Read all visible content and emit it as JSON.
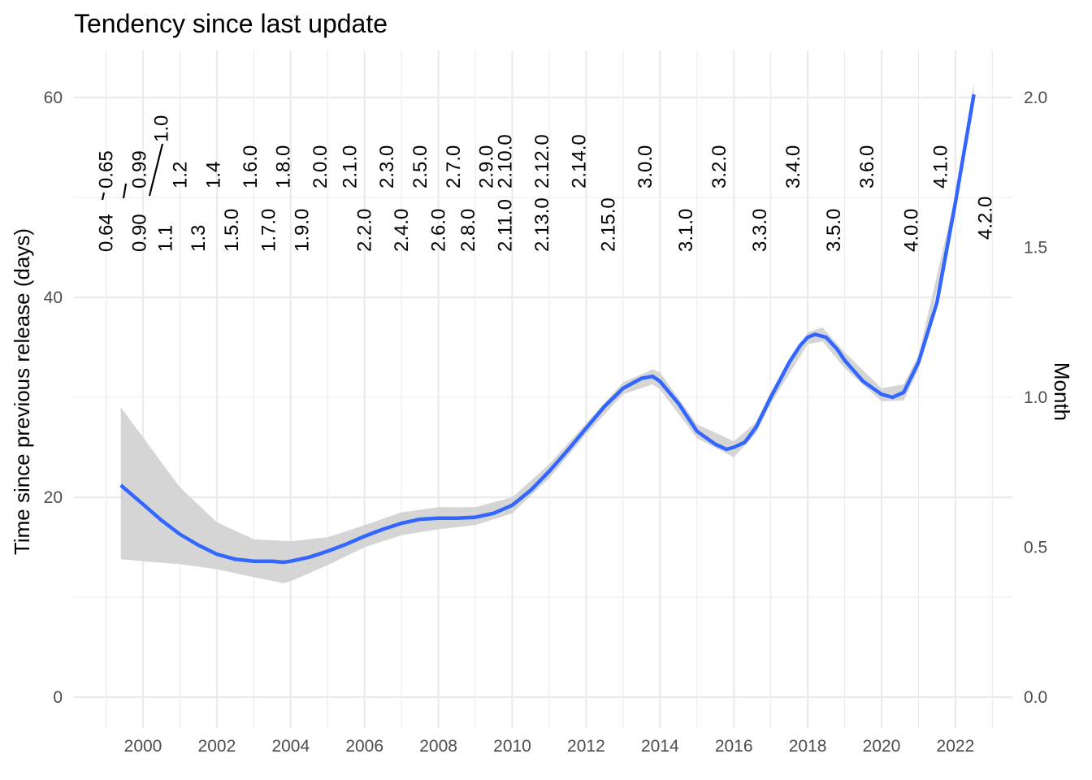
{
  "chart_data": {
    "type": "line",
    "title": "Tendency since last update",
    "xlabel": "",
    "ylabel": "Time since previous release (days)",
    "y2label": "Month",
    "xlim": [
      1998.9,
      2023.6
    ],
    "ylim": [
      -1.5,
      65
    ],
    "x_ticks": [
      2000,
      2002,
      2004,
      2006,
      2008,
      2010,
      2012,
      2014,
      2016,
      2018,
      2020,
      2022
    ],
    "y_ticks": [
      0,
      20,
      40,
      60
    ],
    "y2_ticks": [
      "0.0",
      "0.5",
      "1.0",
      "1.5",
      "2.0"
    ],
    "y2_tick_values_days": [
      0,
      15,
      30,
      45,
      60
    ],
    "grid": true,
    "colors": {
      "line": "#3366ff",
      "ribbon": "#d3d3d3",
      "grid": "#ebebeb",
      "segment": "#000000"
    },
    "series": [
      {
        "x": [
          1999.4,
          2000.0,
          2000.5,
          2001.0,
          2001.5,
          2002.0,
          2002.5,
          2003.0,
          2003.5,
          2003.8,
          2004.0,
          2004.5,
          2005.0,
          2005.5,
          2006.0,
          2006.5,
          2007.0,
          2007.5,
          2008.0,
          2008.5,
          2009.0,
          2009.5,
          2010.0,
          2010.5,
          2011.0,
          2011.5,
          2012.0,
          2012.5,
          2013.0,
          2013.5,
          2013.8,
          2014.0,
          2014.5,
          2015.0,
          2015.5,
          2015.8,
          2016.0,
          2016.3,
          2016.6,
          2017.0,
          2017.5,
          2017.8,
          2018.0,
          2018.2,
          2018.5,
          2018.8,
          2019.0,
          2019.5,
          2020.0,
          2020.3,
          2020.6,
          2021.0,
          2021.5,
          2022.0,
          2022.5
        ],
        "y": [
          21.2,
          19.3,
          17.7,
          16.3,
          15.2,
          14.3,
          13.8,
          13.6,
          13.6,
          13.5,
          13.6,
          14.0,
          14.6,
          15.3,
          16.1,
          16.8,
          17.4,
          17.8,
          17.9,
          17.9,
          18.0,
          18.4,
          19.2,
          20.7,
          22.6,
          24.7,
          26.9,
          29.1,
          30.9,
          31.9,
          32.1,
          31.6,
          29.4,
          26.6,
          25.3,
          24.8,
          25.0,
          25.5,
          27.0,
          30.0,
          33.5,
          35.2,
          36.0,
          36.3,
          36.0,
          34.8,
          33.7,
          31.6,
          30.3,
          30.0,
          30.5,
          33.5,
          39.5,
          49.5,
          60.3
        ]
      },
      {
        "name": "confidence band upper",
        "x": [
          1999.4,
          2000.0,
          2001.0,
          2002.0,
          2003.0,
          2004.0,
          2005.0,
          2006.0,
          2007.0,
          2008.0,
          2009.0,
          2010.0,
          2011.0,
          2012.0,
          2013.0,
          2013.8,
          2014.0,
          2015.0,
          2016.0,
          2016.6,
          2017.0,
          2018.0,
          2018.4,
          2019.0,
          2020.0,
          2020.6,
          2021.0,
          2022.0,
          2022.5
        ],
        "y": [
          29.0,
          26.0,
          21.0,
          17.5,
          15.8,
          15.6,
          16.0,
          17.2,
          18.5,
          19.0,
          19.0,
          20.0,
          23.3,
          27.4,
          31.5,
          32.8,
          32.5,
          27.3,
          25.6,
          27.5,
          30.6,
          36.5,
          37.0,
          34.5,
          30.9,
          31.3,
          34.2,
          50.2,
          61.4
        ]
      },
      {
        "name": "confidence band lower",
        "x": [
          1999.4,
          2000.0,
          2001.0,
          2002.0,
          2003.0,
          2003.8,
          2004.0,
          2005.0,
          2006.0,
          2007.0,
          2008.0,
          2009.0,
          2010.0,
          2011.0,
          2012.0,
          2013.0,
          2013.8,
          2014.0,
          2015.0,
          2016.0,
          2016.6,
          2017.0,
          2018.0,
          2018.4,
          2019.0,
          2020.0,
          2020.6,
          2021.0,
          2022.0,
          2022.5
        ],
        "y": [
          13.8,
          13.6,
          13.3,
          12.8,
          12.0,
          11.4,
          11.6,
          13.2,
          15.0,
          16.2,
          16.8,
          17.2,
          18.4,
          21.9,
          26.3,
          30.3,
          31.3,
          30.8,
          25.9,
          24.0,
          26.4,
          29.4,
          35.3,
          35.6,
          32.9,
          29.6,
          29.7,
          32.8,
          48.7,
          59.2
        ]
      }
    ],
    "version_labels": [
      {
        "label": "0.64",
        "x": 1999.0,
        "row": "low"
      },
      {
        "label": "0.65",
        "x": 1999.0,
        "row": "high"
      },
      {
        "label": "0.90",
        "x": 1999.9,
        "row": "low"
      },
      {
        "label": "0.99",
        "x": 1999.9,
        "row": "high"
      },
      {
        "label": "1.0",
        "x": 2000.5,
        "row": "top"
      },
      {
        "label": "1.1",
        "x": 2000.6,
        "row": "low"
      },
      {
        "label": "1.2",
        "x": 2001.0,
        "row": "high"
      },
      {
        "label": "1.3",
        "x": 2001.5,
        "row": "low"
      },
      {
        "label": "1.4",
        "x": 2001.9,
        "row": "high"
      },
      {
        "label": "1.5.0",
        "x": 2002.4,
        "row": "low"
      },
      {
        "label": "1.6.0",
        "x": 2002.9,
        "row": "high"
      },
      {
        "label": "1.7.0",
        "x": 2003.4,
        "row": "low"
      },
      {
        "label": "1.8.0",
        "x": 2003.8,
        "row": "high"
      },
      {
        "label": "1.9.0",
        "x": 2004.3,
        "row": "low"
      },
      {
        "label": "2.0.0",
        "x": 2004.8,
        "row": "high"
      },
      {
        "label": "2.1.0",
        "x": 2005.6,
        "row": "high"
      },
      {
        "label": "2.2.0",
        "x": 2006.0,
        "row": "low"
      },
      {
        "label": "2.3.0",
        "x": 2006.6,
        "row": "high"
      },
      {
        "label": "2.4.0",
        "x": 2007.0,
        "row": "low"
      },
      {
        "label": "2.5.0",
        "x": 2007.5,
        "row": "high"
      },
      {
        "label": "2.6.0",
        "x": 2008.0,
        "row": "low"
      },
      {
        "label": "2.7.0",
        "x": 2008.4,
        "row": "high"
      },
      {
        "label": "2.8.0",
        "x": 2008.8,
        "row": "low"
      },
      {
        "label": "2.9.0",
        "x": 2009.3,
        "row": "high"
      },
      {
        "label": "2.10.0",
        "x": 2009.8,
        "row": "high"
      },
      {
        "label": "2.11.0",
        "x": 2009.8,
        "row": "low"
      },
      {
        "label": "2.12.0",
        "x": 2010.8,
        "row": "high"
      },
      {
        "label": "2.13.0",
        "x": 2010.8,
        "row": "low"
      },
      {
        "label": "2.14.0",
        "x": 2011.8,
        "row": "high"
      },
      {
        "label": "2.15.0",
        "x": 2012.6,
        "row": "low"
      },
      {
        "label": "3.0.0",
        "x": 2013.6,
        "row": "high"
      },
      {
        "label": "3.1.0",
        "x": 2014.7,
        "row": "low"
      },
      {
        "label": "3.2.0",
        "x": 2015.6,
        "row": "high"
      },
      {
        "label": "3.3.0",
        "x": 2016.7,
        "row": "low"
      },
      {
        "label": "3.4.0",
        "x": 2017.6,
        "row": "high"
      },
      {
        "label": "3.5.0",
        "x": 2018.7,
        "row": "low"
      },
      {
        "label": "3.6.0",
        "x": 2019.6,
        "row": "high"
      },
      {
        "label": "4.0.0",
        "x": 2020.8,
        "row": "low"
      },
      {
        "label": "4.1.0",
        "x": 2021.6,
        "row": "high"
      },
      {
        "label": "4.2.0",
        "x": 2022.8,
        "row": "low2"
      }
    ]
  }
}
